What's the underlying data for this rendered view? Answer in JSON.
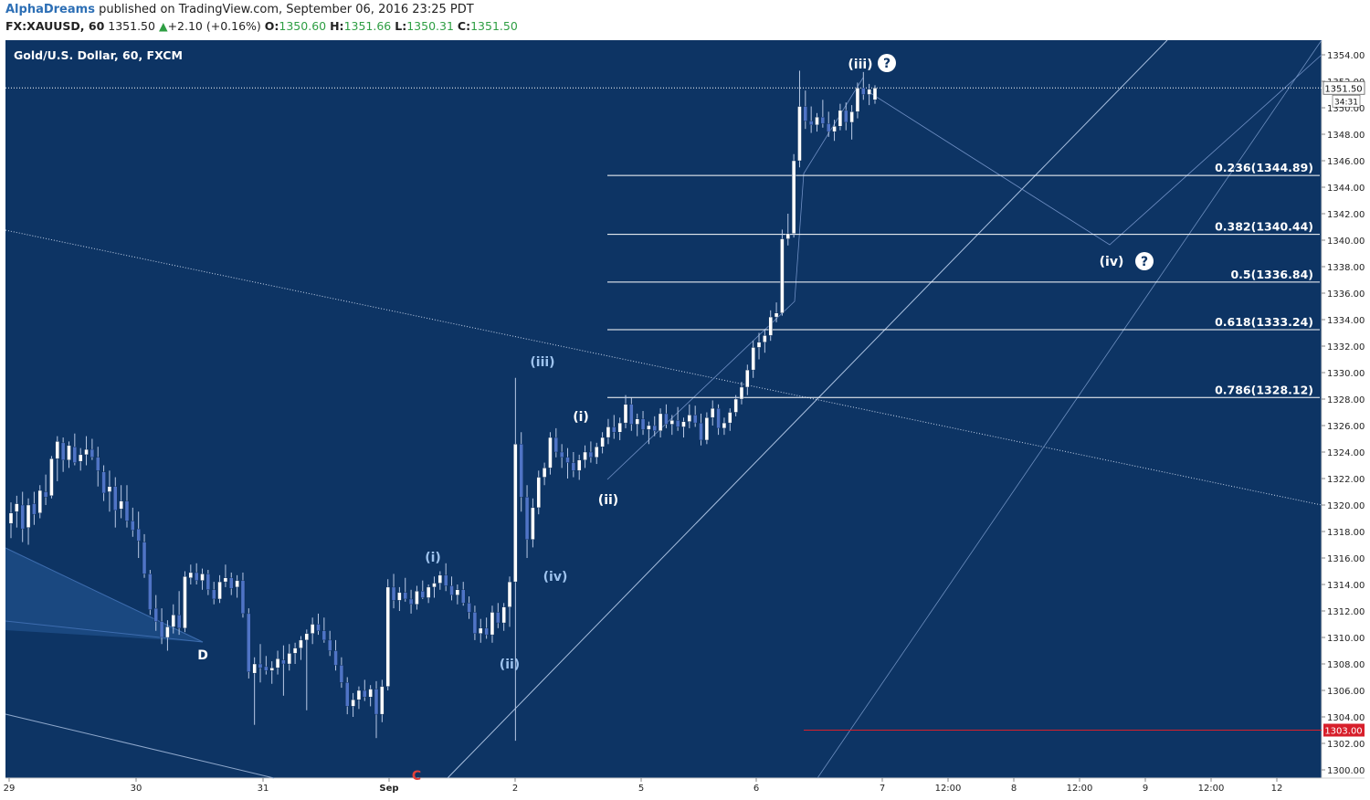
{
  "header": {
    "author": "AlphaDreams",
    "published_text": "published on TradingView.com, September 06, 2016 23:25 PDT",
    "symbol": "FX:XAUUSD, 60",
    "last": "1351.50",
    "change_arrow": "▲",
    "change": "+2.10 (+0.16%)",
    "o_label": "O:",
    "o": "1350.60",
    "h_label": "H:",
    "h": "1351.66",
    "l_label": "L:",
    "l": "1350.31",
    "c_label": "C:",
    "c": "1351.50"
  },
  "colors": {
    "background": "#0d3464",
    "bull": "#ffffff",
    "bear": "#4f74c6",
    "wick": "#b8c9e6",
    "fib_line": "#ffffff",
    "trend_line": "#9fb7d8",
    "wave_label_light": "#9ec3ee",
    "wave_label_white": "#ffffff",
    "price_tag": "#ffffff",
    "red_level": "#d71f2b"
  },
  "chart_data": {
    "type": "candlestick",
    "title": "Gold/U.S. Dollar, 60, FXCM",
    "y_range": [
      1299.5,
      1355.5
    ],
    "y_ticks": [
      1300,
      1302,
      1304,
      1306,
      1308,
      1310,
      1312,
      1314,
      1316,
      1318,
      1320,
      1322,
      1324,
      1326,
      1328,
      1330,
      1332,
      1334,
      1336,
      1338,
      1340,
      1342,
      1344,
      1346,
      1348,
      1350,
      1352,
      1354
    ],
    "x_ticks": [
      "29",
      "30",
      "31",
      "Sep",
      "2",
      "5",
      "6",
      "7",
      "12:00",
      "8",
      "12:00",
      "9",
      "12:00",
      "12"
    ],
    "current_price": "1351.50",
    "countdown": "34:31",
    "red_level": "1303.00",
    "fib_levels": [
      {
        "ratio": "0.236",
        "price": 1344.89,
        "label": "0.236(1344.89)"
      },
      {
        "ratio": "0.382",
        "price": 1340.44,
        "label": "0.382(1340.44)"
      },
      {
        "ratio": "0.5",
        "price": 1336.84,
        "label": "0.5(1336.84)"
      },
      {
        "ratio": "0.618",
        "price": 1333.24,
        "label": "0.618(1333.24)"
      },
      {
        "ratio": "0.786",
        "price": 1328.12,
        "label": "0.786(1328.12)"
      }
    ],
    "wave_labels": {
      "iii_big": "(iii)",
      "q": "?",
      "iv_big": "(iv)",
      "i_white": "(i)",
      "ii_white": "(ii)",
      "iii_light": "(iii)",
      "i_light": "(i)",
      "ii_light": "(ii)",
      "iv_light": "(iv)",
      "D": "D",
      "C": "C"
    },
    "candles": [
      [
        1318.6,
        1320.2,
        1317.5,
        1319.4
      ],
      [
        1319.5,
        1320.7,
        1318.3,
        1320.1
      ],
      [
        1320.0,
        1321.0,
        1317.2,
        1318.2
      ],
      [
        1318.3,
        1320.5,
        1317.0,
        1320.0
      ],
      [
        1320.1,
        1321.0,
        1318.5,
        1319.3
      ],
      [
        1319.4,
        1321.5,
        1319.0,
        1321.1
      ],
      [
        1321.0,
        1322.3,
        1320.0,
        1320.6
      ],
      [
        1320.7,
        1323.7,
        1320.5,
        1323.5
      ],
      [
        1323.5,
        1325.2,
        1321.8,
        1324.8
      ],
      [
        1324.7,
        1325.1,
        1322.5,
        1323.4
      ],
      [
        1323.4,
        1324.8,
        1322.8,
        1324.5
      ],
      [
        1324.4,
        1325.4,
        1323.0,
        1323.2
      ],
      [
        1323.3,
        1324.3,
        1322.6,
        1323.8
      ],
      [
        1323.8,
        1325.2,
        1323.0,
        1324.2
      ],
      [
        1324.2,
        1325.0,
        1323.4,
        1323.6
      ],
      [
        1323.6,
        1324.4,
        1321.4,
        1322.6
      ],
      [
        1322.5,
        1323.0,
        1320.3,
        1320.9
      ],
      [
        1321.0,
        1322.6,
        1319.5,
        1321.4
      ],
      [
        1321.4,
        1322.1,
        1318.3,
        1319.6
      ],
      [
        1319.7,
        1321.5,
        1319.0,
        1320.3
      ],
      [
        1320.3,
        1321.5,
        1318.3,
        1318.8
      ],
      [
        1318.8,
        1319.8,
        1317.6,
        1318.1
      ],
      [
        1318.2,
        1319.5,
        1316.0,
        1317.3
      ],
      [
        1317.2,
        1317.8,
        1314.5,
        1314.8
      ],
      [
        1314.8,
        1315.1,
        1311.7,
        1312.1
      ],
      [
        1312.2,
        1313.2,
        1310.5,
        1311.2
      ],
      [
        1311.2,
        1312.2,
        1309.5,
        1310.0
      ],
      [
        1310.0,
        1311.3,
        1309.0,
        1310.8
      ],
      [
        1310.8,
        1312.5,
        1310.3,
        1311.7
      ],
      [
        1311.7,
        1313.5,
        1310.2,
        1310.7
      ],
      [
        1310.7,
        1315.0,
        1310.4,
        1314.6
      ],
      [
        1314.5,
        1315.5,
        1314.0,
        1314.9
      ],
      [
        1314.9,
        1315.6,
        1314.0,
        1314.3
      ],
      [
        1314.3,
        1315.2,
        1313.6,
        1314.8
      ],
      [
        1314.8,
        1315.1,
        1313.2,
        1313.6
      ],
      [
        1313.6,
        1314.2,
        1312.5,
        1312.9
      ],
      [
        1312.9,
        1314.7,
        1312.6,
        1314.2
      ],
      [
        1314.2,
        1315.5,
        1313.8,
        1314.5
      ],
      [
        1314.5,
        1314.9,
        1313.2,
        1313.7
      ],
      [
        1313.8,
        1314.7,
        1313.0,
        1314.3
      ],
      [
        1314.3,
        1314.9,
        1311.5,
        1311.8
      ],
      [
        1311.8,
        1312.2,
        1306.9,
        1307.4
      ],
      [
        1307.3,
        1308.5,
        1303.4,
        1308.0
      ],
      [
        1308.0,
        1309.5,
        1306.6,
        1307.7
      ],
      [
        1307.8,
        1308.6,
        1307.2,
        1307.5
      ],
      [
        1307.5,
        1308.2,
        1306.5,
        1307.7
      ],
      [
        1307.7,
        1309.0,
        1307.2,
        1308.4
      ],
      [
        1308.3,
        1309.4,
        1305.6,
        1308.0
      ],
      [
        1308.0,
        1309.5,
        1307.5,
        1308.8
      ],
      [
        1308.8,
        1309.6,
        1308.0,
        1309.2
      ],
      [
        1309.2,
        1310.1,
        1308.3,
        1309.8
      ],
      [
        1309.8,
        1310.6,
        1304.5,
        1310.3
      ],
      [
        1310.3,
        1311.5,
        1309.5,
        1311.0
      ],
      [
        1311.0,
        1311.8,
        1310.2,
        1310.5
      ],
      [
        1310.5,
        1311.5,
        1309.6,
        1309.8
      ],
      [
        1309.8,
        1310.5,
        1308.6,
        1309.0
      ],
      [
        1309.0,
        1309.8,
        1307.5,
        1307.9
      ],
      [
        1307.9,
        1308.5,
        1306.2,
        1306.6
      ],
      [
        1306.6,
        1307.0,
        1304.2,
        1304.8
      ],
      [
        1304.8,
        1305.8,
        1304.0,
        1305.3
      ],
      [
        1305.3,
        1306.3,
        1304.6,
        1306.0
      ],
      [
        1306.0,
        1306.8,
        1305.2,
        1305.5
      ],
      [
        1305.5,
        1306.4,
        1304.8,
        1306.1
      ],
      [
        1306.1,
        1306.7,
        1302.4,
        1304.2
      ],
      [
        1304.2,
        1306.8,
        1303.6,
        1306.3
      ],
      [
        1306.3,
        1314.4,
        1306.0,
        1313.8
      ],
      [
        1313.8,
        1314.8,
        1312.2,
        1312.8
      ],
      [
        1312.8,
        1313.8,
        1312.0,
        1313.4
      ],
      [
        1313.4,
        1314.5,
        1312.7,
        1312.9
      ],
      [
        1312.9,
        1313.6,
        1311.8,
        1312.5
      ],
      [
        1312.5,
        1313.9,
        1312.1,
        1313.5
      ],
      [
        1313.5,
        1314.3,
        1312.9,
        1313.0
      ],
      [
        1313.0,
        1314.0,
        1312.6,
        1313.8
      ],
      [
        1313.8,
        1314.6,
        1313.0,
        1314.1
      ],
      [
        1314.1,
        1315.0,
        1313.6,
        1314.7
      ],
      [
        1314.7,
        1315.6,
        1313.5,
        1313.9
      ],
      [
        1313.9,
        1314.6,
        1312.8,
        1313.2
      ],
      [
        1313.2,
        1314.0,
        1312.5,
        1313.6
      ],
      [
        1313.6,
        1314.2,
        1312.4,
        1312.6
      ],
      [
        1312.6,
        1313.1,
        1311.4,
        1311.9
      ],
      [
        1311.9,
        1312.4,
        1309.8,
        1310.3
      ],
      [
        1310.3,
        1311.4,
        1309.6,
        1310.7
      ],
      [
        1310.7,
        1311.5,
        1309.9,
        1310.2
      ],
      [
        1310.2,
        1312.4,
        1309.6,
        1311.9
      ],
      [
        1311.9,
        1312.6,
        1310.7,
        1311.1
      ],
      [
        1311.1,
        1312.6,
        1310.5,
        1312.3
      ],
      [
        1312.3,
        1314.6,
        1310.8,
        1314.2
      ],
      [
        1314.2,
        1329.6,
        1302.2,
        1324.6
      ],
      [
        1324.6,
        1325.5,
        1319.5,
        1320.6
      ],
      [
        1320.6,
        1321.5,
        1316.0,
        1317.4
      ],
      [
        1317.4,
        1320.5,
        1316.8,
        1319.8
      ],
      [
        1319.8,
        1322.6,
        1319.3,
        1322.1
      ],
      [
        1322.1,
        1323.2,
        1321.5,
        1322.8
      ],
      [
        1322.8,
        1325.5,
        1322.3,
        1325.1
      ],
      [
        1325.1,
        1325.8,
        1323.6,
        1324.0
      ],
      [
        1324.0,
        1324.6,
        1322.8,
        1323.6
      ],
      [
        1323.6,
        1324.3,
        1322.0,
        1323.2
      ],
      [
        1323.2,
        1324.0,
        1322.1,
        1322.6
      ],
      [
        1322.6,
        1323.8,
        1321.9,
        1323.4
      ],
      [
        1323.4,
        1324.5,
        1322.8,
        1324.0
      ],
      [
        1324.0,
        1324.8,
        1323.2,
        1323.6
      ],
      [
        1323.6,
        1324.7,
        1323.1,
        1324.4
      ],
      [
        1324.4,
        1325.5,
        1323.9,
        1325.1
      ],
      [
        1325.1,
        1326.5,
        1324.6,
        1325.9
      ],
      [
        1325.9,
        1326.8,
        1325.0,
        1325.5
      ],
      [
        1325.5,
        1326.6,
        1324.9,
        1326.2
      ],
      [
        1326.2,
        1328.3,
        1325.8,
        1327.6
      ],
      [
        1327.6,
        1328.1,
        1325.6,
        1326.1
      ],
      [
        1326.1,
        1326.9,
        1325.2,
        1326.5
      ],
      [
        1326.5,
        1327.1,
        1325.3,
        1325.7
      ],
      [
        1325.7,
        1326.3,
        1324.6,
        1326.0
      ],
      [
        1326.0,
        1326.7,
        1325.2,
        1325.6
      ],
      [
        1325.6,
        1327.3,
        1325.1,
        1326.9
      ],
      [
        1326.9,
        1327.6,
        1325.8,
        1326.1
      ],
      [
        1326.1,
        1326.8,
        1325.3,
        1326.4
      ],
      [
        1326.4,
        1327.4,
        1325.6,
        1325.9
      ],
      [
        1325.9,
        1326.6,
        1325.1,
        1326.3
      ],
      [
        1326.3,
        1327.6,
        1325.8,
        1326.8
      ],
      [
        1326.8,
        1327.5,
        1325.9,
        1326.2
      ],
      [
        1326.2,
        1326.9,
        1324.5,
        1324.9
      ],
      [
        1324.9,
        1327.0,
        1324.6,
        1326.6
      ],
      [
        1326.6,
        1327.9,
        1326.0,
        1327.3
      ],
      [
        1327.3,
        1327.6,
        1325.3,
        1325.8
      ],
      [
        1325.8,
        1326.6,
        1325.3,
        1326.2
      ],
      [
        1326.2,
        1327.3,
        1325.6,
        1327.0
      ],
      [
        1327.0,
        1328.3,
        1326.7,
        1328.0
      ],
      [
        1328.0,
        1329.3,
        1327.6,
        1328.9
      ],
      [
        1328.9,
        1330.6,
        1328.3,
        1330.2
      ],
      [
        1330.2,
        1332.4,
        1329.6,
        1331.9
      ],
      [
        1331.9,
        1333.0,
        1331.0,
        1332.3
      ],
      [
        1332.3,
        1333.3,
        1331.5,
        1332.8
      ],
      [
        1332.8,
        1334.7,
        1332.4,
        1334.2
      ],
      [
        1334.2,
        1335.3,
        1333.8,
        1334.5
      ],
      [
        1334.5,
        1340.8,
        1334.3,
        1340.1
      ],
      [
        1340.1,
        1342.0,
        1339.6,
        1340.5
      ],
      [
        1340.5,
        1346.5,
        1340.2,
        1346.0
      ],
      [
        1346.0,
        1352.8,
        1345.5,
        1350.1
      ],
      [
        1350.1,
        1351.3,
        1348.4,
        1349.0
      ],
      [
        1349.0,
        1350.1,
        1348.1,
        1348.7
      ],
      [
        1348.7,
        1349.6,
        1348.2,
        1349.3
      ],
      [
        1349.3,
        1350.6,
        1348.5,
        1348.8
      ],
      [
        1348.8,
        1349.7,
        1347.8,
        1348.2
      ],
      [
        1348.2,
        1349.1,
        1347.5,
        1348.6
      ],
      [
        1348.6,
        1350.3,
        1348.3,
        1349.8
      ],
      [
        1349.8,
        1350.4,
        1348.3,
        1348.9
      ],
      [
        1348.9,
        1350.2,
        1347.6,
        1349.7
      ],
      [
        1349.7,
        1351.9,
        1349.2,
        1351.5
      ],
      [
        1351.5,
        1352.7,
        1350.6,
        1351.0
      ],
      [
        1351.0,
        1351.8,
        1350.2,
        1351.4
      ],
      [
        1350.6,
        1351.7,
        1350.3,
        1351.5
      ]
    ]
  }
}
